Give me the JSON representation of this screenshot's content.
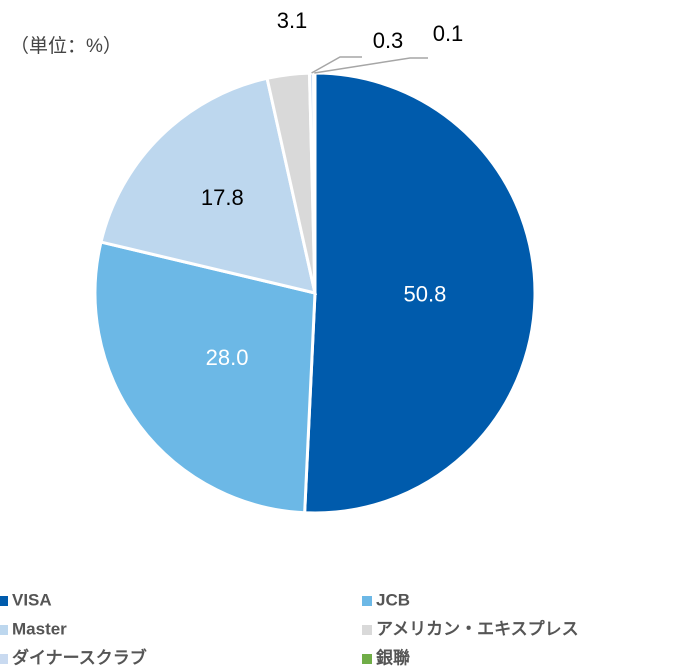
{
  "chart_data": {
    "type": "pie",
    "subtitle": "（単位：%）",
    "categories": [
      "VISA",
      "JCB",
      "Master",
      "アメリカン・エキスプレス",
      "ダイナースクラブ",
      "銀聯"
    ],
    "values": [
      50.8,
      28.0,
      17.8,
      3.1,
      0.3,
      0.1
    ],
    "value_labels": [
      "50.8",
      "28.0",
      "17.8",
      "3.1",
      "0.3",
      "0.1"
    ],
    "colors": [
      "#005bac",
      "#6cb8e6",
      "#bdd7ee",
      "#d9d9d9",
      "#c9daf0",
      "#70ad47"
    ],
    "legend": "bottom"
  }
}
